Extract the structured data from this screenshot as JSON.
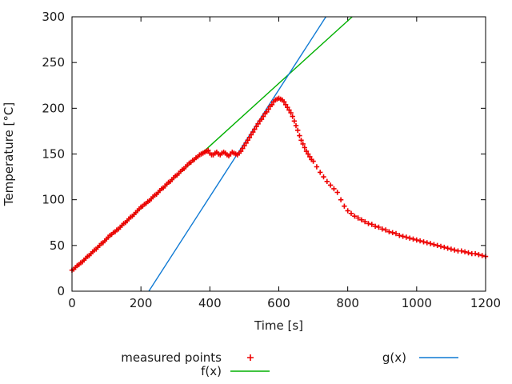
{
  "figure": {
    "background": "#ffffff"
  },
  "chart_data": {
    "type": "scatter",
    "title": "",
    "xlabel": "Time [s]",
    "ylabel": "Temperature [°C]",
    "xlim": [
      0,
      1200
    ],
    "ylim": [
      0,
      300
    ],
    "x_ticks": [
      0,
      200,
      400,
      600,
      800,
      1000,
      1200
    ],
    "y_ticks": [
      0,
      50,
      100,
      150,
      200,
      250,
      300
    ],
    "grid": false,
    "legend_position": "below-plot",
    "axis_color": "#000000",
    "text_color": "#1a1a1a",
    "series": [
      {
        "name": "measured points",
        "type": "points",
        "marker": "plus",
        "color": "#ee0000",
        "points": [
          [
            0,
            23
          ],
          [
            5,
            24
          ],
          [
            10,
            26
          ],
          [
            15,
            28
          ],
          [
            20,
            29
          ],
          [
            25,
            31
          ],
          [
            30,
            32
          ],
          [
            35,
            34
          ],
          [
            40,
            36
          ],
          [
            45,
            38
          ],
          [
            50,
            39
          ],
          [
            55,
            41
          ],
          [
            60,
            43
          ],
          [
            65,
            45
          ],
          [
            70,
            46
          ],
          [
            75,
            48
          ],
          [
            80,
            50
          ],
          [
            85,
            52
          ],
          [
            90,
            53
          ],
          [
            95,
            55
          ],
          [
            100,
            57
          ],
          [
            105,
            59
          ],
          [
            110,
            61
          ],
          [
            115,
            62
          ],
          [
            120,
            64
          ],
          [
            125,
            65
          ],
          [
            130,
            67
          ],
          [
            135,
            68
          ],
          [
            140,
            70
          ],
          [
            145,
            72
          ],
          [
            150,
            74
          ],
          [
            155,
            75
          ],
          [
            160,
            77
          ],
          [
            165,
            79
          ],
          [
            170,
            81
          ],
          [
            175,
            82
          ],
          [
            180,
            84
          ],
          [
            185,
            86
          ],
          [
            190,
            88
          ],
          [
            195,
            90
          ],
          [
            200,
            92
          ],
          [
            205,
            93
          ],
          [
            210,
            95
          ],
          [
            215,
            96
          ],
          [
            220,
            98
          ],
          [
            225,
            99
          ],
          [
            230,
            101
          ],
          [
            235,
            103
          ],
          [
            240,
            105
          ],
          [
            245,
            106
          ],
          [
            250,
            108
          ],
          [
            255,
            110
          ],
          [
            260,
            112
          ],
          [
            265,
            113
          ],
          [
            270,
            115
          ],
          [
            275,
            117
          ],
          [
            280,
            119
          ],
          [
            285,
            120
          ],
          [
            290,
            122
          ],
          [
            295,
            124
          ],
          [
            300,
            126
          ],
          [
            305,
            127
          ],
          [
            310,
            129
          ],
          [
            315,
            131
          ],
          [
            320,
            133
          ],
          [
            325,
            134
          ],
          [
            330,
            136
          ],
          [
            335,
            138
          ],
          [
            340,
            140
          ],
          [
            345,
            141
          ],
          [
            350,
            143
          ],
          [
            355,
            144
          ],
          [
            360,
            146
          ],
          [
            365,
            147
          ],
          [
            370,
            149
          ],
          [
            375,
            150
          ],
          [
            380,
            151
          ],
          [
            385,
            152
          ],
          [
            390,
            153
          ],
          [
            395,
            154
          ],
          [
            400,
            151
          ],
          [
            405,
            149
          ],
          [
            410,
            149
          ],
          [
            415,
            151
          ],
          [
            420,
            152
          ],
          [
            425,
            150
          ],
          [
            430,
            149
          ],
          [
            435,
            151
          ],
          [
            440,
            152
          ],
          [
            445,
            151
          ],
          [
            450,
            149
          ],
          [
            455,
            148
          ],
          [
            460,
            150
          ],
          [
            465,
            152
          ],
          [
            470,
            151
          ],
          [
            475,
            150
          ],
          [
            480,
            149
          ],
          [
            485,
            151
          ],
          [
            490,
            153
          ],
          [
            495,
            156
          ],
          [
            500,
            159
          ],
          [
            505,
            162
          ],
          [
            510,
            165
          ],
          [
            515,
            168
          ],
          [
            520,
            171
          ],
          [
            525,
            174
          ],
          [
            530,
            177
          ],
          [
            535,
            180
          ],
          [
            540,
            183
          ],
          [
            545,
            186
          ],
          [
            550,
            188
          ],
          [
            555,
            191
          ],
          [
            560,
            194
          ],
          [
            565,
            196
          ],
          [
            570,
            199
          ],
          [
            575,
            202
          ],
          [
            580,
            204
          ],
          [
            585,
            207
          ],
          [
            590,
            209
          ],
          [
            595,
            210
          ],
          [
            600,
            211
          ],
          [
            605,
            210
          ],
          [
            610,
            209
          ],
          [
            615,
            207
          ],
          [
            620,
            204
          ],
          [
            625,
            201
          ],
          [
            630,
            198
          ],
          [
            635,
            195
          ],
          [
            640,
            191
          ],
          [
            645,
            186
          ],
          [
            650,
            181
          ],
          [
            655,
            176
          ],
          [
            660,
            170
          ],
          [
            665,
            165
          ],
          [
            670,
            161
          ],
          [
            675,
            157
          ],
          [
            680,
            153
          ],
          [
            685,
            150
          ],
          [
            690,
            147
          ],
          [
            695,
            144
          ],
          [
            700,
            142
          ],
          [
            710,
            136
          ],
          [
            720,
            130
          ],
          [
            730,
            125
          ],
          [
            740,
            120
          ],
          [
            750,
            116
          ],
          [
            760,
            112
          ],
          [
            770,
            108
          ],
          [
            780,
            100
          ],
          [
            790,
            93
          ],
          [
            800,
            88
          ],
          [
            810,
            85
          ],
          [
            820,
            82
          ],
          [
            830,
            80
          ],
          [
            840,
            78
          ],
          [
            850,
            76
          ],
          [
            860,
            74
          ],
          [
            870,
            73
          ],
          [
            880,
            71
          ],
          [
            890,
            70
          ],
          [
            900,
            68
          ],
          [
            910,
            67
          ],
          [
            920,
            65
          ],
          [
            930,
            64
          ],
          [
            940,
            63
          ],
          [
            950,
            61
          ],
          [
            960,
            60
          ],
          [
            970,
            59
          ],
          [
            980,
            58
          ],
          [
            990,
            57
          ],
          [
            1000,
            56
          ],
          [
            1010,
            55
          ],
          [
            1020,
            54
          ],
          [
            1030,
            53
          ],
          [
            1040,
            52
          ],
          [
            1050,
            51
          ],
          [
            1060,
            50
          ],
          [
            1070,
            49
          ],
          [
            1080,
            48
          ],
          [
            1090,
            47
          ],
          [
            1100,
            46
          ],
          [
            1110,
            45
          ],
          [
            1120,
            44
          ],
          [
            1130,
            44
          ],
          [
            1140,
            43
          ],
          [
            1150,
            42
          ],
          [
            1160,
            41
          ],
          [
            1170,
            41
          ],
          [
            1180,
            40
          ],
          [
            1190,
            39
          ],
          [
            1200,
            38
          ]
        ]
      },
      {
        "name": "f(x)",
        "type": "linear",
        "color": "#00b000",
        "slope": 0.342,
        "intercept": 22
      },
      {
        "name": "g(x)",
        "type": "linear",
        "color": "#0f7ad4",
        "slope": 0.584,
        "intercept": -130.2
      }
    ],
    "legend": {
      "entries": [
        {
          "label": "measured points",
          "sample": "plus-marker",
          "color": "#ee0000"
        },
        {
          "label": "f(x)",
          "sample": "line",
          "color": "#00b000"
        },
        {
          "label": "g(x)",
          "sample": "line",
          "color": "#0f7ad4"
        }
      ]
    }
  }
}
